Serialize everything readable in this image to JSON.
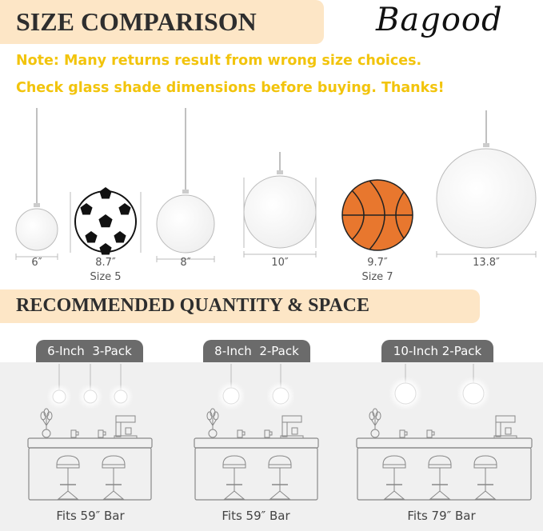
{
  "header": {
    "title": "SIZE COMPARISON",
    "logo": "Bagood"
  },
  "notes": [
    "Note: Many returns result from wrong size choices.",
    "Check glass shade dimensions before buying. Thanks!"
  ],
  "sizes": [
    {
      "label": "6″",
      "kind": "globe"
    },
    {
      "label": "8.7″",
      "sub": "Size 5",
      "kind": "soccer-ball"
    },
    {
      "label": "8″",
      "kind": "globe"
    },
    {
      "label": "10″",
      "kind": "globe"
    },
    {
      "label": "9.7″",
      "sub": "Size 7",
      "kind": "basketball"
    },
    {
      "label": "13.8″",
      "kind": "globe"
    }
  ],
  "section2": {
    "title": "RECOMMENDED QUANTITY & SPACE"
  },
  "packs": [
    {
      "tab": "6-Inch  3-Pack",
      "fits": "Fits 59″ Bar",
      "lamps": 3,
      "stools": 2
    },
    {
      "tab": "8-Inch  2-Pack",
      "fits": "Fits 59″ Bar",
      "lamps": 2,
      "stools": 2
    },
    {
      "tab": "10-Inch 2-Pack",
      "fits": "Fits 79″ Bar",
      "lamps": 2,
      "stools": 3
    }
  ],
  "colors": {
    "header_bg": "#fde6c6",
    "note": "#f2c40c",
    "tab": "#6b6b6b",
    "panel": "#f0f0f0",
    "basketball": "#e8772e"
  }
}
